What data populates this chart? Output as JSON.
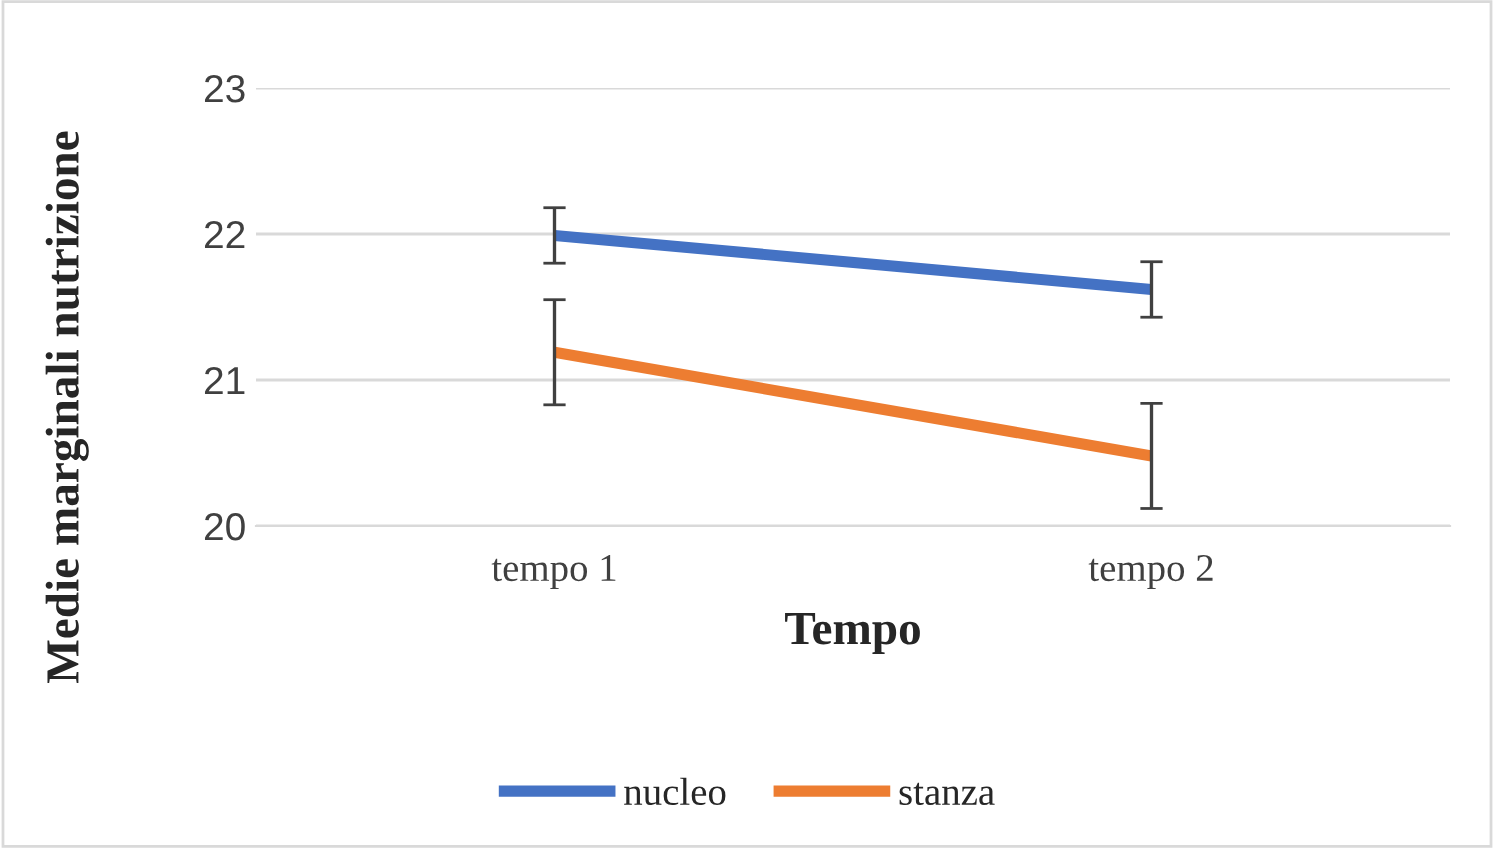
{
  "chart_data": {
    "type": "line",
    "xlabel": "Tempo",
    "ylabel": "Medie marginali nutrizione",
    "categories": [
      "tempo 1",
      "tempo 2"
    ],
    "series": [
      {
        "name": "nucleo",
        "color": "#4472c4",
        "values": [
          21.99,
          21.62
        ],
        "errors": [
          0.19,
          0.19
        ]
      },
      {
        "name": "stanza",
        "color": "#ed7d31",
        "values": [
          21.19,
          20.48
        ],
        "errors": [
          0.36,
          0.36
        ]
      }
    ],
    "ylim": [
      20,
      23
    ],
    "yticks": [
      20,
      21,
      22,
      23
    ],
    "grid": "y",
    "legend": "bottom",
    "marker": "none",
    "line_style": "solid"
  }
}
